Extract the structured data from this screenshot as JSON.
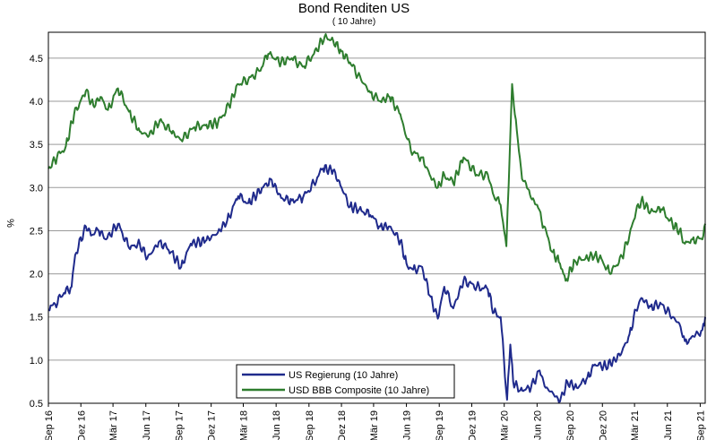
{
  "chart_data": {
    "type": "line",
    "title": "Bond Renditen US",
    "subtitle": "( 10 Jahre)",
    "xlabel": "",
    "ylabel": "%",
    "ylim": [
      0.5,
      4.8
    ],
    "yticks": [
      "0.5",
      "1.0",
      "1.5",
      "2.0",
      "2.5",
      "3.0",
      "3.5",
      "4.0",
      "4.5"
    ],
    "ytick_values": [
      0.5,
      1.0,
      1.5,
      2.0,
      2.5,
      3.0,
      3.5,
      4.0,
      4.5
    ],
    "xlim": [
      "2016-09-01",
      "2021-09-15"
    ],
    "xticks": [
      {
        "label": "Sep 16",
        "date": "2016-09-01"
      },
      {
        "label": "Dez 16",
        "date": "2016-12-01"
      },
      {
        "label": "Mär 17",
        "date": "2017-03-01"
      },
      {
        "label": "Jun 17",
        "date": "2017-06-01"
      },
      {
        "label": "Sep 17",
        "date": "2017-09-01"
      },
      {
        "label": "Dez 17",
        "date": "2017-12-01"
      },
      {
        "label": "Mär 18",
        "date": "2018-03-01"
      },
      {
        "label": "Jun 18",
        "date": "2018-06-01"
      },
      {
        "label": "Sep 18",
        "date": "2018-09-01"
      },
      {
        "label": "Dez 18",
        "date": "2018-12-01"
      },
      {
        "label": "Mär 19",
        "date": "2019-03-01"
      },
      {
        "label": "Jun 19",
        "date": "2019-06-01"
      },
      {
        "label": "Sep 19",
        "date": "2019-09-01"
      },
      {
        "label": "Dez 19",
        "date": "2019-12-01"
      },
      {
        "label": "Mär 20",
        "date": "2020-03-01"
      },
      {
        "label": "Jun 20",
        "date": "2020-06-01"
      },
      {
        "label": "Sep 20",
        "date": "2020-09-01"
      },
      {
        "label": "Dez 20",
        "date": "2020-12-01"
      },
      {
        "label": "Mär 21",
        "date": "2021-03-01"
      },
      {
        "label": "Jun 21",
        "date": "2021-06-01"
      },
      {
        "label": "Sep 21",
        "date": "2021-09-01"
      }
    ],
    "grid": "horizontal",
    "legend_position": "bottom-center",
    "series": [
      {
        "name": "US Regierung (10 Jahre)",
        "color": "#1f2a8c",
        "points": [
          [
            "2016-09-01",
            1.58
          ],
          [
            "2016-09-20",
            1.65
          ],
          [
            "2016-10-15",
            1.78
          ],
          [
            "2016-11-05",
            1.85
          ],
          [
            "2016-11-15",
            2.22
          ],
          [
            "2016-12-15",
            2.55
          ],
          [
            "2017-01-01",
            2.45
          ],
          [
            "2017-01-20",
            2.5
          ],
          [
            "2017-02-10",
            2.4
          ],
          [
            "2017-03-15",
            2.58
          ],
          [
            "2017-04-15",
            2.3
          ],
          [
            "2017-05-15",
            2.35
          ],
          [
            "2017-06-05",
            2.18
          ],
          [
            "2017-07-10",
            2.38
          ],
          [
            "2017-08-10",
            2.25
          ],
          [
            "2017-09-08",
            2.08
          ],
          [
            "2017-10-05",
            2.35
          ],
          [
            "2017-11-15",
            2.38
          ],
          [
            "2017-12-20",
            2.48
          ],
          [
            "2018-01-15",
            2.62
          ],
          [
            "2018-02-15",
            2.9
          ],
          [
            "2018-03-15",
            2.82
          ],
          [
            "2018-04-25",
            3.0
          ],
          [
            "2018-05-17",
            3.1
          ],
          [
            "2018-06-15",
            2.88
          ],
          [
            "2018-07-15",
            2.85
          ],
          [
            "2018-08-15",
            2.88
          ],
          [
            "2018-09-15",
            3.05
          ],
          [
            "2018-10-10",
            3.22
          ],
          [
            "2018-11-08",
            3.2
          ],
          [
            "2018-12-01",
            3.0
          ],
          [
            "2018-12-25",
            2.78
          ],
          [
            "2019-01-20",
            2.75
          ],
          [
            "2019-02-20",
            2.68
          ],
          [
            "2019-03-20",
            2.55
          ],
          [
            "2019-04-15",
            2.55
          ],
          [
            "2019-05-15",
            2.38
          ],
          [
            "2019-06-01",
            2.12
          ],
          [
            "2019-06-20",
            2.05
          ],
          [
            "2019-07-15",
            2.08
          ],
          [
            "2019-08-05",
            1.75
          ],
          [
            "2019-08-28",
            1.48
          ],
          [
            "2019-09-15",
            1.85
          ],
          [
            "2019-10-10",
            1.6
          ],
          [
            "2019-11-08",
            1.92
          ],
          [
            "2019-12-15",
            1.85
          ],
          [
            "2020-01-15",
            1.82
          ],
          [
            "2020-02-01",
            1.55
          ],
          [
            "2020-02-20",
            1.5
          ],
          [
            "2020-03-09",
            0.54
          ],
          [
            "2020-03-18",
            1.18
          ],
          [
            "2020-03-26",
            0.75
          ],
          [
            "2020-04-15",
            0.65
          ],
          [
            "2020-05-15",
            0.68
          ],
          [
            "2020-06-08",
            0.88
          ],
          [
            "2020-06-25",
            0.68
          ],
          [
            "2020-07-15",
            0.62
          ],
          [
            "2020-08-04",
            0.52
          ],
          [
            "2020-08-25",
            0.75
          ],
          [
            "2020-09-20",
            0.68
          ],
          [
            "2020-10-20",
            0.8
          ],
          [
            "2020-11-10",
            0.95
          ],
          [
            "2020-12-10",
            0.93
          ],
          [
            "2021-01-05",
            1.0
          ],
          [
            "2021-01-25",
            1.1
          ],
          [
            "2021-02-15",
            1.3
          ],
          [
            "2021-03-05",
            1.58
          ],
          [
            "2021-03-20",
            1.72
          ],
          [
            "2021-04-15",
            1.62
          ],
          [
            "2021-05-15",
            1.65
          ],
          [
            "2021-06-15",
            1.5
          ],
          [
            "2021-07-05",
            1.42
          ],
          [
            "2021-07-20",
            1.22
          ],
          [
            "2021-08-05",
            1.25
          ],
          [
            "2021-08-25",
            1.32
          ],
          [
            "2021-09-07",
            1.35
          ],
          [
            "2021-09-15",
            1.5
          ]
        ]
      },
      {
        "name": "USD BBB Composite (10 Jahre)",
        "color": "#2e7d2e",
        "points": [
          [
            "2016-09-01",
            3.22
          ],
          [
            "2016-09-25",
            3.35
          ],
          [
            "2016-10-20",
            3.48
          ],
          [
            "2016-11-12",
            3.85
          ],
          [
            "2016-12-15",
            4.12
          ],
          [
            "2017-01-05",
            3.95
          ],
          [
            "2017-01-25",
            4.05
          ],
          [
            "2017-02-15",
            3.9
          ],
          [
            "2017-03-15",
            4.15
          ],
          [
            "2017-04-15",
            3.88
          ],
          [
            "2017-05-15",
            3.65
          ],
          [
            "2017-06-10",
            3.6
          ],
          [
            "2017-07-10",
            3.78
          ],
          [
            "2017-08-10",
            3.65
          ],
          [
            "2017-09-08",
            3.55
          ],
          [
            "2017-10-15",
            3.7
          ],
          [
            "2017-11-15",
            3.72
          ],
          [
            "2017-12-20",
            3.75
          ],
          [
            "2018-01-20",
            3.95
          ],
          [
            "2018-02-15",
            4.2
          ],
          [
            "2018-03-15",
            4.25
          ],
          [
            "2018-04-15",
            4.35
          ],
          [
            "2018-05-10",
            4.55
          ],
          [
            "2018-06-15",
            4.45
          ],
          [
            "2018-07-15",
            4.5
          ],
          [
            "2018-08-15",
            4.4
          ],
          [
            "2018-09-15",
            4.55
          ],
          [
            "2018-10-15",
            4.75
          ],
          [
            "2018-11-08",
            4.7
          ],
          [
            "2018-12-01",
            4.58
          ],
          [
            "2018-12-25",
            4.45
          ],
          [
            "2019-01-25",
            4.25
          ],
          [
            "2019-02-20",
            4.1
          ],
          [
            "2019-03-20",
            4.0
          ],
          [
            "2019-04-15",
            4.05
          ],
          [
            "2019-05-15",
            3.85
          ],
          [
            "2019-06-01",
            3.58
          ],
          [
            "2019-06-20",
            3.4
          ],
          [
            "2019-07-15",
            3.35
          ],
          [
            "2019-08-05",
            3.15
          ],
          [
            "2019-08-28",
            3.0
          ],
          [
            "2019-09-15",
            3.15
          ],
          [
            "2019-10-10",
            3.05
          ],
          [
            "2019-11-08",
            3.35
          ],
          [
            "2019-12-15",
            3.15
          ],
          [
            "2020-01-15",
            3.15
          ],
          [
            "2020-02-01",
            2.9
          ],
          [
            "2020-02-20",
            2.8
          ],
          [
            "2020-03-07",
            2.32
          ],
          [
            "2020-03-23",
            4.2
          ],
          [
            "2020-03-28",
            3.95
          ],
          [
            "2020-04-08",
            3.55
          ],
          [
            "2020-04-20",
            3.1
          ],
          [
            "2020-05-01",
            3.05
          ],
          [
            "2020-05-15",
            2.88
          ],
          [
            "2020-06-01",
            2.8
          ],
          [
            "2020-06-20",
            2.55
          ],
          [
            "2020-07-15",
            2.25
          ],
          [
            "2020-08-04",
            2.12
          ],
          [
            "2020-08-20",
            1.92
          ],
          [
            "2020-09-15",
            2.15
          ],
          [
            "2020-10-15",
            2.18
          ],
          [
            "2020-11-10",
            2.22
          ],
          [
            "2020-12-01",
            2.15
          ],
          [
            "2020-12-20",
            2.02
          ],
          [
            "2021-01-10",
            2.1
          ],
          [
            "2021-01-25",
            2.2
          ],
          [
            "2021-02-15",
            2.45
          ],
          [
            "2021-03-05",
            2.72
          ],
          [
            "2021-03-20",
            2.85
          ],
          [
            "2021-04-15",
            2.72
          ],
          [
            "2021-05-15",
            2.75
          ],
          [
            "2021-06-15",
            2.58
          ],
          [
            "2021-07-05",
            2.5
          ],
          [
            "2021-07-20",
            2.35
          ],
          [
            "2021-08-10",
            2.4
          ],
          [
            "2021-09-07",
            2.4
          ],
          [
            "2021-09-15",
            2.58
          ]
        ]
      }
    ]
  }
}
